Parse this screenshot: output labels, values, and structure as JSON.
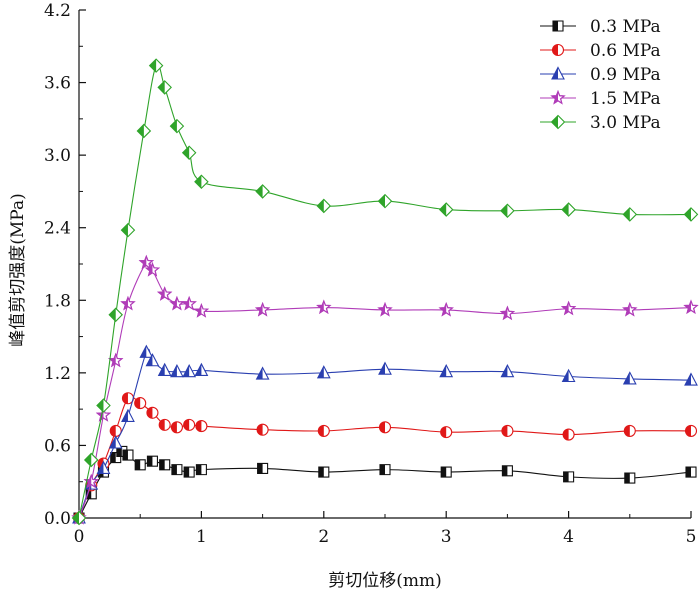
{
  "chart_data": {
    "type": "line",
    "xlabel": "剪切位移(mm)",
    "ylabel": "峰值剪切强度(MPa)",
    "xlim": [
      0,
      5
    ],
    "ylim": [
      0,
      4.2
    ],
    "xticks": [
      "0",
      "1",
      "2",
      "3",
      "4",
      "5"
    ],
    "yticks": [
      "0.0",
      "0.6",
      "1.2",
      "1.8",
      "2.4",
      "3.0",
      "3.6",
      "4.2"
    ],
    "grid": false,
    "legend_position": "top-right",
    "series": [
      {
        "name": "0.3 MPa",
        "color": "#111111",
        "marker": "half-square",
        "x": [
          0,
          0.1,
          0.2,
          0.3,
          0.35,
          0.4,
          0.5,
          0.6,
          0.7,
          0.8,
          0.9,
          1.0,
          1.5,
          2.0,
          2.5,
          3.0,
          3.5,
          4.0,
          4.5,
          5.0
        ],
        "y": [
          0.0,
          0.2,
          0.38,
          0.5,
          0.55,
          0.52,
          0.44,
          0.47,
          0.44,
          0.4,
          0.38,
          0.4,
          0.41,
          0.38,
          0.4,
          0.38,
          0.39,
          0.34,
          0.33,
          0.38
        ]
      },
      {
        "name": "0.6 MPa",
        "color": "#e01818",
        "marker": "half-circle",
        "x": [
          0,
          0.1,
          0.2,
          0.3,
          0.4,
          0.5,
          0.6,
          0.7,
          0.8,
          0.9,
          1.0,
          1.5,
          2.0,
          2.5,
          3.0,
          3.5,
          4.0,
          4.5,
          5.0
        ],
        "y": [
          0.0,
          0.27,
          0.45,
          0.72,
          0.99,
          0.95,
          0.87,
          0.77,
          0.75,
          0.77,
          0.76,
          0.73,
          0.72,
          0.75,
          0.71,
          0.72,
          0.69,
          0.72,
          0.72
        ]
      },
      {
        "name": "0.9 MPa",
        "color": "#2a3fb0",
        "marker": "half-triangle",
        "x": [
          0,
          0.1,
          0.2,
          0.3,
          0.4,
          0.55,
          0.6,
          0.7,
          0.8,
          0.9,
          1.0,
          1.5,
          2.0,
          2.5,
          3.0,
          3.5,
          4.0,
          4.5,
          5.0
        ],
        "y": [
          0.0,
          0.28,
          0.41,
          0.62,
          0.84,
          1.37,
          1.3,
          1.22,
          1.21,
          1.21,
          1.22,
          1.19,
          1.2,
          1.23,
          1.21,
          1.21,
          1.17,
          1.15,
          1.14
        ]
      },
      {
        "name": "1.5 MPa",
        "color": "#b03cb8",
        "marker": "half-star",
        "x": [
          0,
          0.1,
          0.2,
          0.3,
          0.4,
          0.55,
          0.6,
          0.7,
          0.8,
          0.9,
          1.0,
          1.5,
          2.0,
          2.5,
          3.0,
          3.5,
          4.0,
          4.5,
          5.0
        ],
        "y": [
          0.0,
          0.3,
          0.85,
          1.3,
          1.77,
          2.11,
          2.05,
          1.85,
          1.77,
          1.77,
          1.71,
          1.72,
          1.74,
          1.72,
          1.72,
          1.69,
          1.73,
          1.72,
          1.74
        ]
      },
      {
        "name": "3.0 MPa",
        "color": "#2fa42a",
        "marker": "half-diamond",
        "x": [
          0,
          0.1,
          0.2,
          0.3,
          0.4,
          0.53,
          0.63,
          0.7,
          0.8,
          0.9,
          1.0,
          1.5,
          2.0,
          2.5,
          3.0,
          3.5,
          4.0,
          4.5,
          5.0
        ],
        "y": [
          0.0,
          0.48,
          0.93,
          1.68,
          2.38,
          3.2,
          3.74,
          3.56,
          3.24,
          3.02,
          2.78,
          2.7,
          2.58,
          2.62,
          2.55,
          2.54,
          2.55,
          2.51,
          2.51
        ]
      }
    ]
  }
}
